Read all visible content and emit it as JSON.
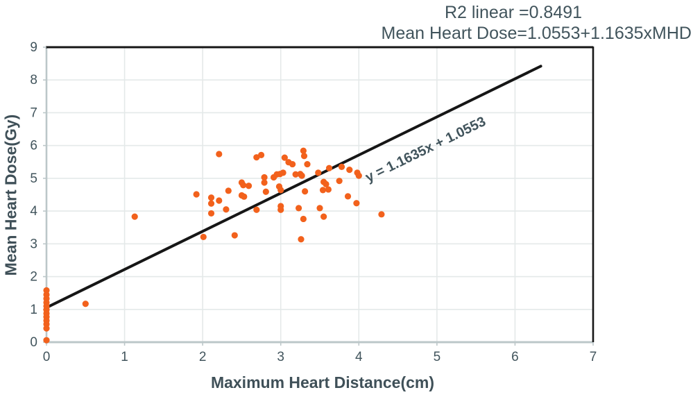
{
  "header": {
    "r2_line": "R2 linear =0.8491",
    "equation_line": "Mean Heart Dose=1.0553+1.1635xMHD"
  },
  "chart_data": {
    "type": "scatter",
    "title": "R2 linear =0.8491",
    "subtitle": "Mean Heart Dose=1.0553+1.1635xMHD",
    "xlabel": "Maximum Heart Distance(cm)",
    "ylabel": "Mean Heart Dose(Gy)",
    "xlim": [
      0,
      7
    ],
    "ylim": [
      0,
      9
    ],
    "x_ticks": [
      0,
      1,
      2,
      3,
      4,
      5,
      6,
      7
    ],
    "y_ticks": [
      0,
      1,
      2,
      3,
      4,
      5,
      6,
      7,
      8,
      9
    ],
    "grid": true,
    "legend": null,
    "marker_color": "#f2611c",
    "points": [
      [
        0,
        1.58
      ],
      [
        0,
        1.45
      ],
      [
        0,
        1.33
      ],
      [
        0,
        1.21
      ],
      [
        0,
        1.1
      ],
      [
        0,
        0.99
      ],
      [
        0,
        0.88
      ],
      [
        0,
        0.77
      ],
      [
        0,
        0.66
      ],
      [
        0,
        0.55
      ],
      [
        0,
        0.42
      ],
      [
        0,
        0.06
      ],
      [
        0.5,
        1.17
      ],
      [
        1.13,
        3.83
      ],
      [
        1.92,
        4.51
      ],
      [
        2.01,
        3.21
      ],
      [
        2.11,
        4.41
      ],
      [
        2.11,
        4.23
      ],
      [
        2.11,
        3.93
      ],
      [
        2.21,
        5.74
      ],
      [
        2.21,
        4.32
      ],
      [
        2.3,
        4.05
      ],
      [
        2.33,
        4.62
      ],
      [
        2.41,
        3.26
      ],
      [
        2.5,
        4.87
      ],
      [
        2.52,
        4.79
      ],
      [
        2.59,
        4.77
      ],
      [
        2.5,
        4.48
      ],
      [
        2.53,
        4.44
      ],
      [
        2.69,
        5.64
      ],
      [
        2.75,
        5.71
      ],
      [
        2.69,
        4.04
      ],
      [
        2.79,
        5.03
      ],
      [
        2.79,
        4.87
      ],
      [
        2.81,
        4.59
      ],
      [
        2.91,
        5.03
      ],
      [
        2.95,
        5.12
      ],
      [
        2.99,
        5.13
      ],
      [
        3.03,
        5.17
      ],
      [
        2.98,
        4.75
      ],
      [
        3.0,
        4.64
      ],
      [
        3.0,
        4.15
      ],
      [
        3.0,
        4.04
      ],
      [
        3.05,
        5.63
      ],
      [
        3.1,
        5.49
      ],
      [
        3.15,
        5.43
      ],
      [
        3.19,
        5.12
      ],
      [
        3.25,
        5.13
      ],
      [
        3.27,
        5.08
      ],
      [
        3.23,
        4.09
      ],
      [
        3.26,
        3.14
      ],
      [
        3.29,
        5.84
      ],
      [
        3.3,
        5.68
      ],
      [
        3.34,
        5.43
      ],
      [
        3.31,
        4.6
      ],
      [
        3.29,
        3.76
      ],
      [
        3.48,
        5.17
      ],
      [
        3.5,
        4.09
      ],
      [
        3.54,
        4.64
      ],
      [
        3.55,
        4.89
      ],
      [
        3.55,
        3.83
      ],
      [
        3.58,
        4.82
      ],
      [
        3.61,
        4.66
      ],
      [
        3.62,
        5.31
      ],
      [
        3.75,
        4.92
      ],
      [
        3.78,
        5.35
      ],
      [
        3.86,
        4.45
      ],
      [
        3.88,
        5.26
      ],
      [
        3.97,
        4.24
      ],
      [
        3.98,
        5.17
      ],
      [
        4.0,
        5.08
      ],
      [
        4.29,
        3.9
      ]
    ],
    "trendline": {
      "slope": 1.1635,
      "intercept": 1.0553,
      "x_start": 0,
      "x_end": 6.33,
      "label": "y = 1.1635x + 1.0553"
    }
  },
  "colors": {
    "marker": "#f2611c",
    "trendline": "#161616",
    "grid": "#e4e9e9",
    "axis_line": "#bcc7c9",
    "border_dark": "#161616",
    "text": "#41545c"
  }
}
